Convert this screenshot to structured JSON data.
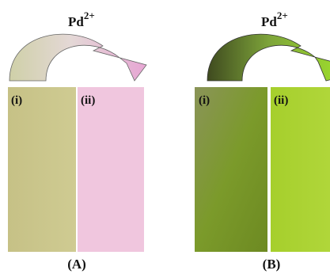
{
  "panels": [
    {
      "label": "(A)",
      "reagent": {
        "base": "Pd",
        "sup": "2+"
      },
      "strips": [
        {
          "label": "(i)"
        },
        {
          "label": "(ii)"
        }
      ]
    },
    {
      "label": "(B)",
      "reagent": {
        "base": "Pd",
        "sup": "2+"
      },
      "strips": [
        {
          "label": "(i)"
        },
        {
          "label": "(ii)"
        }
      ]
    }
  ]
}
